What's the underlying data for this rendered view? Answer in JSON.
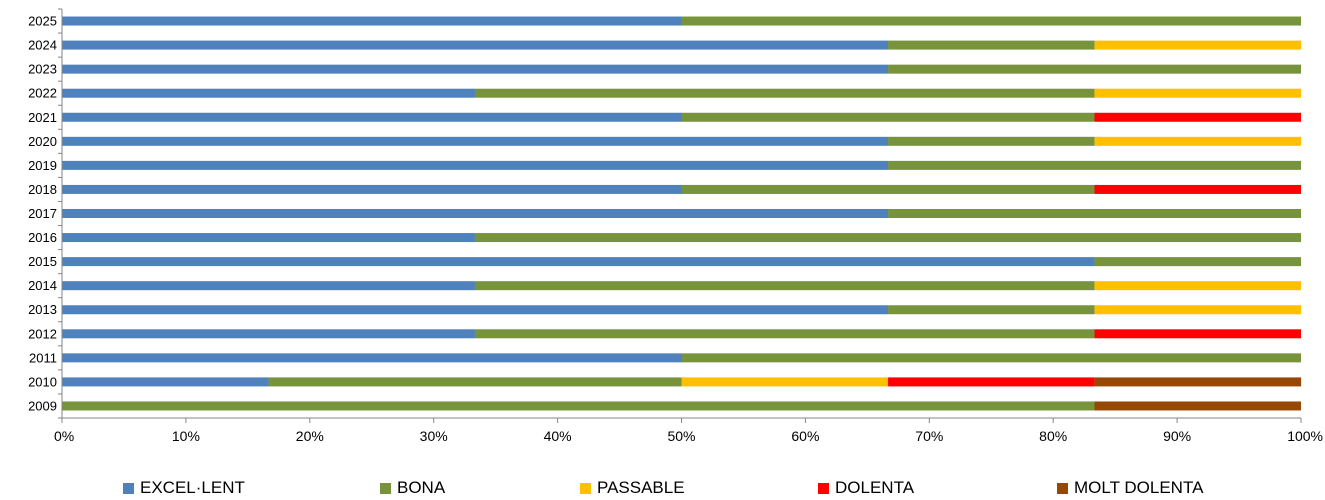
{
  "chart_data": {
    "type": "bar",
    "orientation": "horizontal",
    "stacked": "percent",
    "categories": [
      "2025",
      "2024",
      "2023",
      "2022",
      "2021",
      "2020",
      "2019",
      "2018",
      "2017",
      "2016",
      "2015",
      "2014",
      "2013",
      "2012",
      "2011",
      "2010",
      "2009"
    ],
    "series": [
      {
        "name": "EXCEL·LENT",
        "color": "#4F81BD",
        "values": [
          50,
          66.67,
          66.67,
          33.33,
          50,
          66.67,
          66.67,
          50,
          66.67,
          33.33,
          83.33,
          33.33,
          66.67,
          33.33,
          50,
          16.67,
          0
        ]
      },
      {
        "name": "BONA",
        "color": "#77933C",
        "values": [
          50,
          16.67,
          33.33,
          50,
          33.33,
          16.67,
          33.33,
          33.33,
          33.33,
          66.67,
          16.67,
          50,
          16.67,
          50,
          50,
          33.33,
          83.33
        ]
      },
      {
        "name": "PASSABLE",
        "color": "#FFC000",
        "values": [
          0,
          16.67,
          0,
          16.67,
          0,
          16.67,
          0,
          0,
          0,
          0,
          0,
          16.67,
          16.67,
          0,
          0,
          16.67,
          0
        ]
      },
      {
        "name": "DOLENTA",
        "color": "#FF0000",
        "values": [
          0,
          0,
          0,
          0,
          16.67,
          0,
          0,
          16.67,
          0,
          0,
          0,
          0,
          0,
          16.67,
          0,
          16.67,
          0
        ]
      },
      {
        "name": "MOLT DOLENTA",
        "color": "#974706",
        "values": [
          0,
          0,
          0,
          0,
          0,
          0,
          0,
          0,
          0,
          0,
          0,
          0,
          0,
          0,
          0,
          16.67,
          16.67
        ]
      }
    ],
    "x_ticks": [
      "0%",
      "10%",
      "20%",
      "30%",
      "40%",
      "50%",
      "60%",
      "70%",
      "80%",
      "90%",
      "100%"
    ],
    "xlim": [
      0,
      100
    ],
    "grid": false,
    "legend_position": "bottom"
  }
}
